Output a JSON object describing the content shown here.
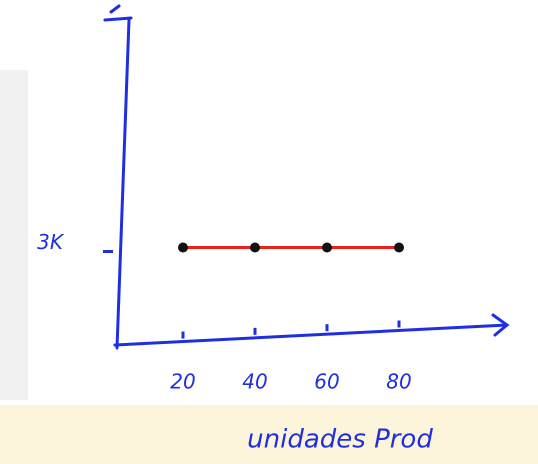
{
  "chart_data": {
    "type": "line",
    "x": [
      20,
      40,
      60,
      80
    ],
    "series": [
      {
        "color": "#e8231c",
        "values": [
          3000,
          3000,
          3000,
          3000
        ]
      }
    ],
    "point_color": "#111111",
    "axis_color": "#1f2fe0",
    "xlim": [
      0,
      110
    ],
    "xticks": [
      20,
      40,
      60,
      80
    ],
    "ylim": [
      0,
      10000
    ],
    "yticks": [
      {
        "value": 3000,
        "label": "3K"
      }
    ],
    "xlabel": "unidades Prod"
  }
}
